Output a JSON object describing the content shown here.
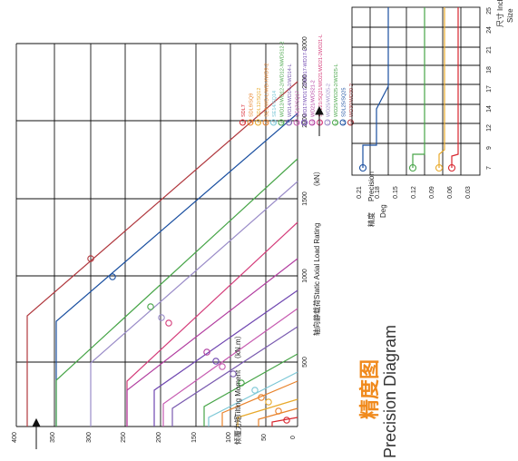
{
  "main_chart": {
    "y_label_cn": "倾覆力矩",
    "y_label_en": "Tilting Moment",
    "y_unit": "（kN.m）",
    "x_label_cn": "轴向静载荷",
    "x_label_en": "Static Axial Load Rating",
    "x_unit": "（kN）",
    "y_ticks": [
      "0",
      "50",
      "100",
      "150",
      "200",
      "250",
      "300",
      "350",
      "400"
    ],
    "x_ticks": [
      "500",
      "1000",
      "1500",
      "2000",
      "2500",
      "3000"
    ],
    "legend": [
      {
        "num": "1",
        "name": "SDL7",
        "color": "#d8262e"
      },
      {
        "num": "2",
        "name": "SDL9/SQ9",
        "color": "#e8822a"
      },
      {
        "num": "3",
        "name": "SDL12/SQ12",
        "color": "#e8a92a"
      },
      {
        "num": "4",
        "name": "SE9/WD-L/WD-XWD9-2",
        "color": "#e8822a"
      },
      {
        "num": "5",
        "name": "SE14/SQ14",
        "color": "#7bc7d6"
      },
      {
        "num": "6",
        "name": "WD12/WD12-2/WD12-NWDS12-2",
        "color": "#47a548"
      },
      {
        "num": "7",
        "name": "WD14/WD14-2/WD14-L",
        "color": "#7a5bb0"
      },
      {
        "num": "8",
        "name": "SE17/SQ17",
        "color": "#c65ab0"
      },
      {
        "num": "9",
        "name": "WD17/WD17-2/WD17-WD17-L",
        "color": "#6f46b0"
      },
      {
        "num": "10",
        "name": "WD21/WDS21-2",
        "color": "#b23ea0"
      },
      {
        "num": "11",
        "name": "SDL21/SQ21/WD21/WD21-2WD21-L",
        "color": "#d43c7a"
      },
      {
        "num": "12",
        "name": "WD25/WD25-2",
        "color": "#9a8cc8"
      },
      {
        "num": "13",
        "name": "WD25/WD25-2/WD25-L",
        "color": "#47a548"
      },
      {
        "num": "14",
        "name": "SDL25/SQ25",
        "color": "#1a4fa0"
      },
      {
        "num": "15",
        "name": "WD30/WD30-2",
        "color": "#b0383e"
      }
    ]
  },
  "precision_chart": {
    "label_cn": "精度",
    "label_en": "Precision",
    "unit": "Deg",
    "y_ticks": [
      "0.21",
      "0.18",
      "0.15",
      "0.12",
      "0.09",
      "0.06",
      "0.03"
    ],
    "size_ticks": [
      "7",
      "9",
      "12",
      "14",
      "17",
      "18",
      "21",
      "24",
      "25"
    ],
    "size_label_cn": "尺寸",
    "size_label_en": "Inch",
    "size_label_sub": "Size"
  },
  "title": {
    "cn": "精度图",
    "en": "Precision Diagram"
  }
}
